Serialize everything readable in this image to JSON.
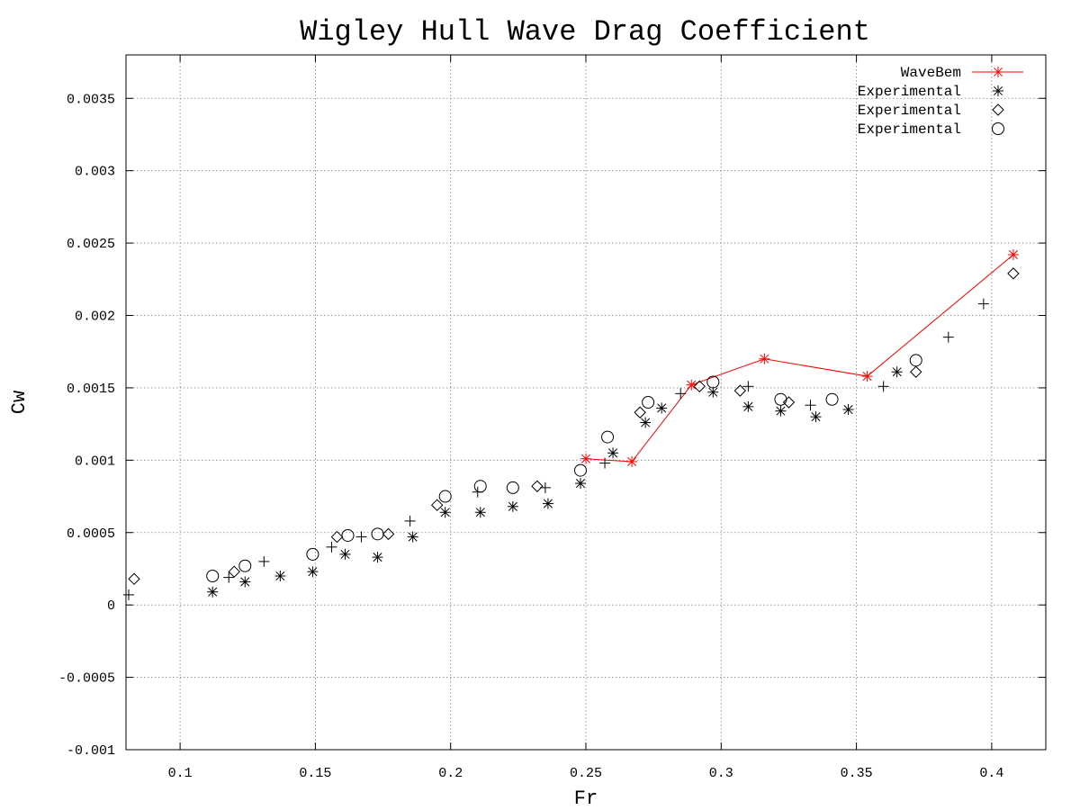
{
  "chart_data": {
    "type": "scatter",
    "title": "Wigley Hull Wave Drag Coefficient",
    "xlabel": "Fr",
    "ylabel": "Cw",
    "xlim": [
      0.08,
      0.42
    ],
    "ylim": [
      -0.001,
      0.0038
    ],
    "x_ticks": [
      0.1,
      0.15,
      0.2,
      0.25,
      0.3,
      0.35,
      0.4
    ],
    "x_tick_labels": [
      "0.1",
      "0.15",
      "0.2",
      "0.25",
      "0.3",
      "0.35",
      "0.4"
    ],
    "y_ticks": [
      -0.001,
      -0.0005,
      0,
      0.0005,
      0.001,
      0.0015,
      0.002,
      0.0025,
      0.003,
      0.0035
    ],
    "y_tick_labels": [
      "-0.001",
      "-0.0005",
      "0",
      "0.0005",
      "0.001",
      "0.0015",
      "0.002",
      "0.0025",
      "0.003",
      "0.0035"
    ],
    "grid": true,
    "legend_position": "top-right",
    "colors": {
      "wavebem": "#ff0000",
      "experimental": "#000000"
    },
    "series": [
      {
        "name": "WaveBem",
        "style": "line-star",
        "color": "#ff0000",
        "points": [
          [
            0.25,
            0.00101
          ],
          [
            0.267,
            0.00099
          ],
          [
            0.289,
            0.00152
          ],
          [
            0.316,
            0.0017
          ],
          [
            0.354,
            0.00158
          ],
          [
            0.408,
            0.00242
          ]
        ]
      },
      {
        "name": "Experimental",
        "style": "asterisk",
        "color": "#000000",
        "points": [
          [
            0.112,
            9e-05
          ],
          [
            0.124,
            0.00016
          ],
          [
            0.137,
            0.0002
          ],
          [
            0.149,
            0.00023
          ],
          [
            0.161,
            0.00035
          ],
          [
            0.173,
            0.00033
          ],
          [
            0.186,
            0.00047
          ],
          [
            0.198,
            0.00064
          ],
          [
            0.211,
            0.00064
          ],
          [
            0.223,
            0.00068
          ],
          [
            0.236,
            0.0007
          ],
          [
            0.248,
            0.00084
          ],
          [
            0.26,
            0.00105
          ],
          [
            0.272,
            0.00126
          ],
          [
            0.278,
            0.00136
          ],
          [
            0.297,
            0.00147
          ],
          [
            0.31,
            0.00137
          ],
          [
            0.322,
            0.00134
          ],
          [
            0.335,
            0.0013
          ],
          [
            0.347,
            0.00135
          ],
          [
            0.365,
            0.00161
          ]
        ]
      },
      {
        "name": "Experimental",
        "style": "diamond",
        "color": "#000000",
        "points": [
          [
            0.083,
            0.00018
          ],
          [
            0.12,
            0.00023
          ],
          [
            0.158,
            0.00047
          ],
          [
            0.177,
            0.00049
          ],
          [
            0.195,
            0.00069
          ],
          [
            0.232,
            0.00082
          ],
          [
            0.27,
            0.00133
          ],
          [
            0.292,
            0.00151
          ],
          [
            0.307,
            0.00148
          ],
          [
            0.325,
            0.0014
          ],
          [
            0.372,
            0.00161
          ],
          [
            0.408,
            0.00229
          ]
        ]
      },
      {
        "name": "Experimental",
        "style": "circle",
        "color": "#000000",
        "points": [
          [
            0.112,
            0.0002
          ],
          [
            0.124,
            0.00027
          ],
          [
            0.149,
            0.00035
          ],
          [
            0.162,
            0.00048
          ],
          [
            0.173,
            0.00049
          ],
          [
            0.198,
            0.00075
          ],
          [
            0.211,
            0.00082
          ],
          [
            0.223,
            0.00081
          ],
          [
            0.248,
            0.00093
          ],
          [
            0.258,
            0.00116
          ],
          [
            0.273,
            0.0014
          ],
          [
            0.297,
            0.00154
          ],
          [
            0.322,
            0.00142
          ],
          [
            0.341,
            0.00142
          ],
          [
            0.372,
            0.00169
          ]
        ]
      },
      {
        "style": "plus",
        "color": "#000000",
        "points": [
          [
            0.081,
            7e-05
          ],
          [
            0.118,
            0.00019
          ],
          [
            0.131,
            0.0003
          ],
          [
            0.156,
            0.0004
          ],
          [
            0.167,
            0.00047
          ],
          [
            0.185,
            0.00058
          ],
          [
            0.21,
            0.00078
          ],
          [
            0.235,
            0.00081
          ],
          [
            0.257,
            0.00098
          ],
          [
            0.285,
            0.00146
          ],
          [
            0.31,
            0.00151
          ],
          [
            0.333,
            0.00138
          ],
          [
            0.36,
            0.00151
          ],
          [
            0.384,
            0.00185
          ],
          [
            0.397,
            0.00208
          ]
        ]
      }
    ]
  }
}
